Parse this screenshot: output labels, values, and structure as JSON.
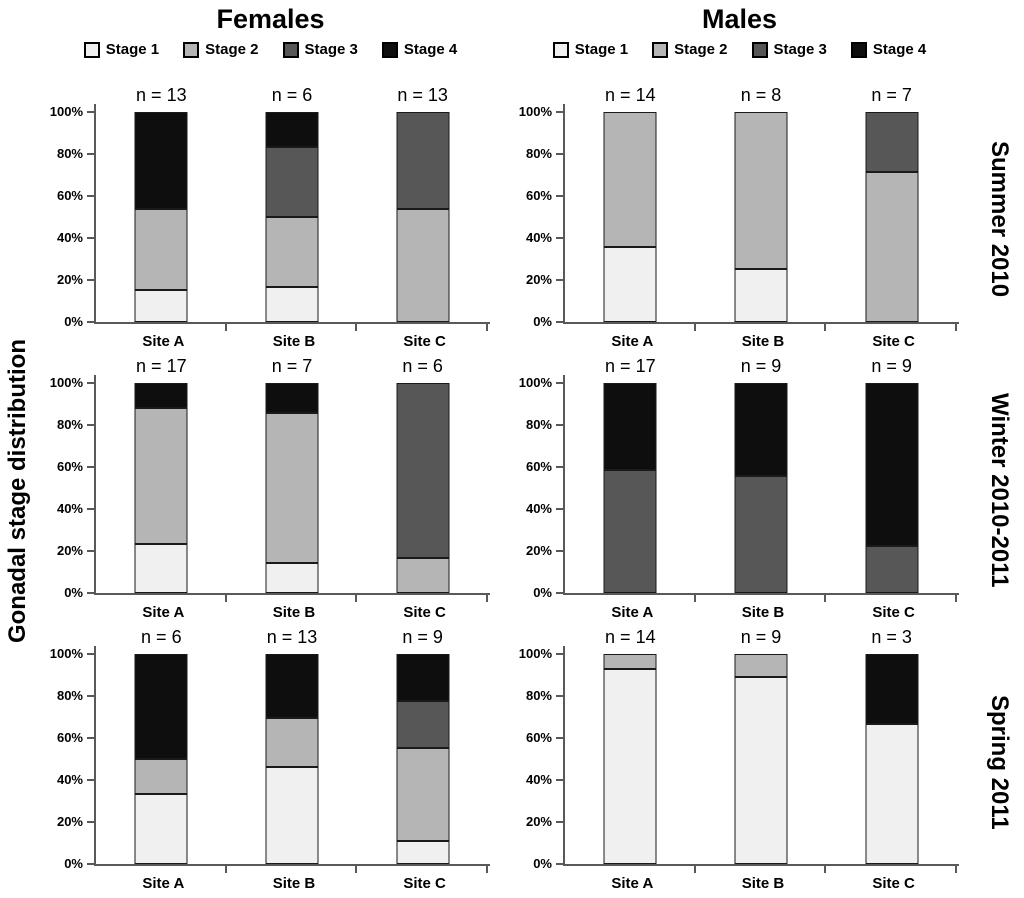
{
  "chart_data": {
    "type": "bar",
    "variant": "100%-stacked-bar-grid",
    "ylabel": "Gonadal stage distribution",
    "column_titles": [
      "Females",
      "Males"
    ],
    "row_labels": [
      "Summer 2010",
      "Winter 2010-2011",
      "Spring 2011"
    ],
    "stages": [
      "Stage 1",
      "Stage 2",
      "Stage 3",
      "Stage 4"
    ],
    "stage_colors": [
      "#f0f0f0",
      "#b5b5b5",
      "#575757",
      "#0e0e0e"
    ],
    "categories": [
      "Site A",
      "Site B",
      "Site C"
    ],
    "y_ticks": [
      "100%",
      "80%",
      "60%",
      "40%",
      "20%",
      "0%"
    ],
    "ylim": [
      0,
      100
    ],
    "grid": "off",
    "legend_position": "top-of-each-column",
    "panels": [
      {
        "sex": "Females",
        "season": "Summer 2010",
        "bars": [
          {
            "site": "Site A",
            "n_label": "n = 13",
            "values": [
              15.4,
              38.5,
              0,
              46.1
            ]
          },
          {
            "site": "Site B",
            "n_label": "n = 6",
            "values": [
              16.7,
              33.3,
              33.3,
              16.7
            ]
          },
          {
            "site": "Site C",
            "n_label": "n = 13",
            "values": [
              0,
              53.8,
              46.2,
              0
            ]
          }
        ]
      },
      {
        "sex": "Males",
        "season": "Summer 2010",
        "bars": [
          {
            "site": "Site A",
            "n_label": "n = 14",
            "values": [
              35.7,
              64.3,
              0,
              0
            ]
          },
          {
            "site": "Site B",
            "n_label": "n = 8",
            "values": [
              25,
              75,
              0,
              0
            ]
          },
          {
            "site": "Site C",
            "n_label": "n = 7",
            "values": [
              0,
              71.4,
              28.6,
              0
            ]
          }
        ]
      },
      {
        "sex": "Females",
        "season": "Winter 2010-2011",
        "bars": [
          {
            "site": "Site A",
            "n_label": "n = 17",
            "values": [
              23.5,
              64.7,
              0,
              11.8
            ]
          },
          {
            "site": "Site B",
            "n_label": "n = 7",
            "values": [
              14.3,
              71.4,
              0,
              14.3
            ]
          },
          {
            "site": "Site C",
            "n_label": "n = 6",
            "values": [
              0,
              16.7,
              83.3,
              0
            ]
          }
        ]
      },
      {
        "sex": "Males",
        "season": "Winter 2010-2011",
        "bars": [
          {
            "site": "Site A",
            "n_label": "n = 17",
            "values": [
              0,
              0,
              58.8,
              41.2
            ]
          },
          {
            "site": "Site B",
            "n_label": "n = 9",
            "values": [
              0,
              0,
              55.6,
              44.4
            ]
          },
          {
            "site": "Site C",
            "n_label": "n = 9",
            "values": [
              0,
              0,
              22.2,
              77.8
            ]
          }
        ]
      },
      {
        "sex": "Females",
        "season": "Spring 2011",
        "bars": [
          {
            "site": "Site A",
            "n_label": "n = 6",
            "values": [
              33.3,
              16.7,
              0,
              50
            ]
          },
          {
            "site": "Site B",
            "n_label": "n = 13",
            "values": [
              46.2,
              23.1,
              0,
              30.7
            ]
          },
          {
            "site": "Site C",
            "n_label": "n = 9",
            "values": [
              11.1,
              44.4,
              22.2,
              22.3
            ]
          }
        ]
      },
      {
        "sex": "Males",
        "season": "Spring 2011",
        "bars": [
          {
            "site": "Site A",
            "n_label": "n = 14",
            "values": [
              92.9,
              7.1,
              0,
              0
            ]
          },
          {
            "site": "Site B",
            "n_label": "n = 9",
            "values": [
              88.9,
              11.1,
              0,
              0
            ]
          },
          {
            "site": "Site C",
            "n_label": "n = 3",
            "values": [
              66.7,
              0,
              0,
              33.3
            ]
          }
        ]
      }
    ],
    "axis_color": "#595959",
    "segment_border_color": "#1a1a1a"
  }
}
